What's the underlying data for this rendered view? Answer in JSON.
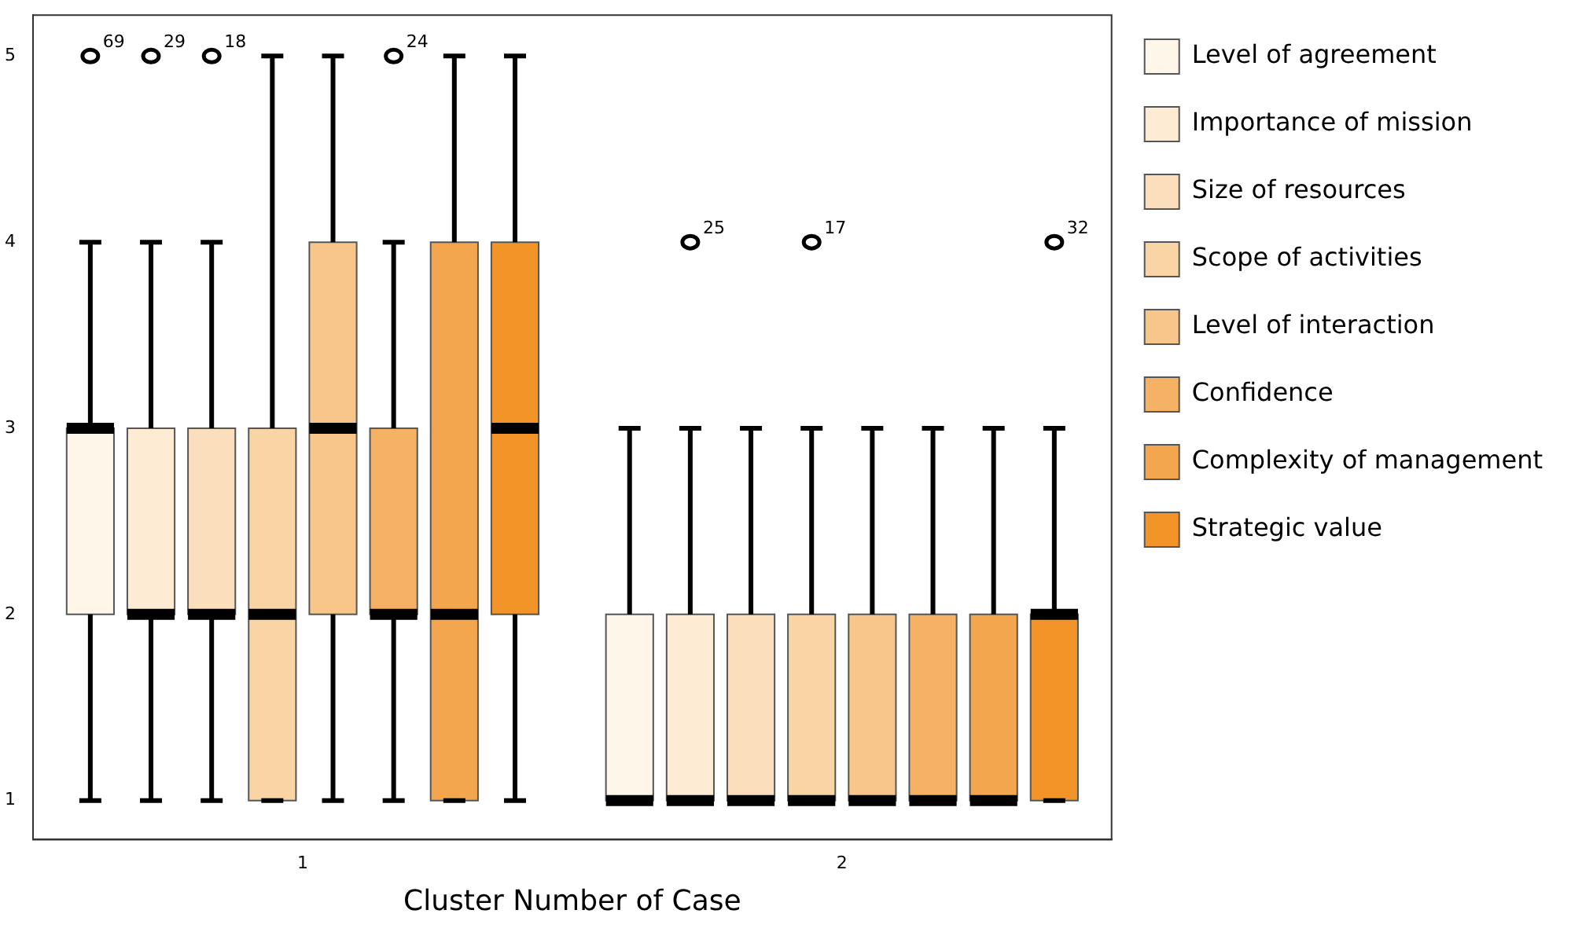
{
  "chart_data": {
    "type": "box",
    "xlabel": "Cluster Number of Case",
    "categories": [
      "1",
      "2"
    ],
    "ylim": [
      0.79,
      5.22
    ],
    "yticks": [
      1,
      2,
      3,
      4,
      5
    ],
    "legend": "right",
    "grid": false,
    "series": [
      {
        "name": "Level of agreement",
        "color": "#fff6ea",
        "boxes": [
          {
            "low": 1,
            "q1": 2,
            "median": 3,
            "q3": 3,
            "high": 4,
            "outliers": [
              5
            ]
          },
          {
            "low": 1,
            "q1": 1,
            "median": 1,
            "q3": 2,
            "high": 3
          }
        ]
      },
      {
        "name": "Importance of mission",
        "color": "#fdebd3",
        "boxes": [
          {
            "low": 1,
            "q1": 2,
            "median": 2,
            "q3": 3,
            "high": 4,
            "outliers": [
              5
            ]
          },
          {
            "low": 1,
            "q1": 1,
            "median": 1,
            "q3": 2,
            "high": 3,
            "outliers": [
              4
            ]
          }
        ]
      },
      {
        "name": "Size of resources",
        "color": "#fbdfbc",
        "boxes": [
          {
            "low": 1,
            "q1": 2,
            "median": 2,
            "q3": 3,
            "high": 4,
            "outliers": [
              5
            ]
          },
          {
            "low": 1,
            "q1": 1,
            "median": 1,
            "q3": 2,
            "high": 3
          }
        ]
      },
      {
        "name": "Scope of activities",
        "color": "#f9d4a5",
        "boxes": [
          {
            "low": 1,
            "q1": 1,
            "median": 2,
            "q3": 3,
            "high": 5
          },
          {
            "low": 1,
            "q1": 1,
            "median": 1,
            "q3": 2,
            "high": 3,
            "outliers": [
              4
            ]
          }
        ]
      },
      {
        "name": "Level of interaction",
        "color": "#f8c68a",
        "boxes": [
          {
            "low": 1,
            "q1": 2,
            "median": 3,
            "q3": 4,
            "high": 5
          },
          {
            "low": 1,
            "q1": 1,
            "median": 1,
            "q3": 2,
            "high": 3
          }
        ]
      },
      {
        "name": "Confidence",
        "color": "#f5b264",
        "boxes": [
          {
            "low": 1,
            "q1": 2,
            "median": 2,
            "q3": 3,
            "high": 4,
            "outliers": [
              5
            ]
          },
          {
            "low": 1,
            "q1": 1,
            "median": 1,
            "q3": 2,
            "high": 3
          }
        ]
      },
      {
        "name": "Complexity of management",
        "color": "#f4a64e",
        "boxes": [
          {
            "low": 1,
            "q1": 1,
            "median": 2,
            "q3": 4,
            "high": 5
          },
          {
            "low": 1,
            "q1": 1,
            "median": 1,
            "q3": 2,
            "high": 3
          }
        ]
      },
      {
        "name": "Strategic value",
        "color": "#f29427",
        "boxes": [
          {
            "low": 1,
            "q1": 2,
            "median": 3,
            "q3": 4,
            "high": 5
          },
          {
            "low": 1,
            "q1": 1,
            "median": 2,
            "q3": 2,
            "high": 3,
            "outliers": [
              4
            ]
          }
        ]
      }
    ],
    "annotations": [
      "69",
      "29",
      "18",
      "24",
      "25",
      "17",
      "32"
    ]
  }
}
